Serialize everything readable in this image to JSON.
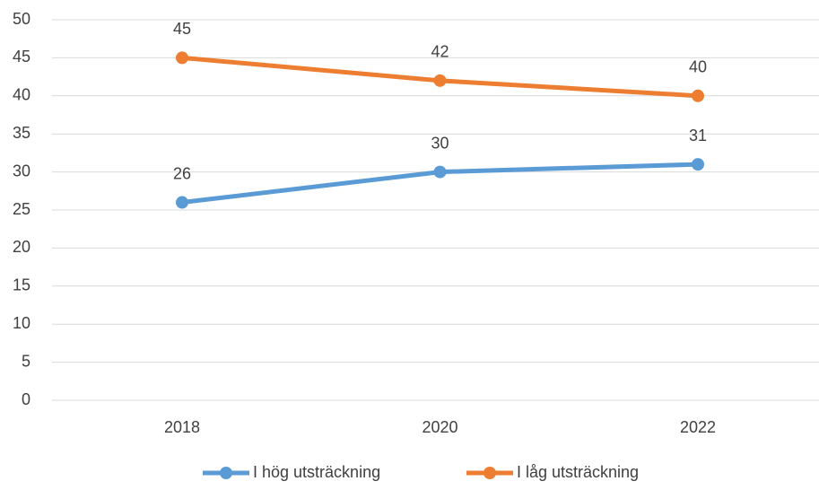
{
  "chart_data": {
    "type": "line",
    "categories": [
      "2018",
      "2020",
      "2022"
    ],
    "series": [
      {
        "name": "I hög utsträckning",
        "color": "#5b9bd5",
        "values": [
          26,
          30,
          31
        ]
      },
      {
        "name": "I låg utsträckning",
        "color": "#ed7d31",
        "values": [
          45,
          42,
          40
        ]
      }
    ],
    "ylim": [
      0,
      50
    ],
    "yticks": [
      0,
      5,
      10,
      15,
      20,
      25,
      30,
      35,
      40,
      45,
      50
    ],
    "grid": true,
    "legend": "bottom"
  }
}
